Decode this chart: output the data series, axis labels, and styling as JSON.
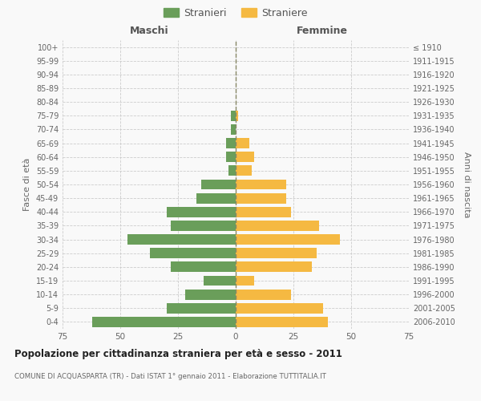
{
  "age_groups": [
    "0-4",
    "5-9",
    "10-14",
    "15-19",
    "20-24",
    "25-29",
    "30-34",
    "35-39",
    "40-44",
    "45-49",
    "50-54",
    "55-59",
    "60-64",
    "65-69",
    "70-74",
    "75-79",
    "80-84",
    "85-89",
    "90-94",
    "95-99",
    "100+"
  ],
  "birth_years": [
    "2006-2010",
    "2001-2005",
    "1996-2000",
    "1991-1995",
    "1986-1990",
    "1981-1985",
    "1976-1980",
    "1971-1975",
    "1966-1970",
    "1961-1965",
    "1956-1960",
    "1951-1955",
    "1946-1950",
    "1941-1945",
    "1936-1940",
    "1931-1935",
    "1926-1930",
    "1921-1925",
    "1916-1920",
    "1911-1915",
    "≤ 1910"
  ],
  "maschi": [
    62,
    30,
    22,
    14,
    28,
    37,
    47,
    28,
    30,
    17,
    15,
    3,
    4,
    4,
    2,
    2,
    0,
    0,
    0,
    0,
    0
  ],
  "femmine": [
    40,
    38,
    24,
    8,
    33,
    35,
    45,
    36,
    24,
    22,
    22,
    7,
    8,
    6,
    0,
    1,
    0,
    0,
    0,
    0,
    0
  ],
  "male_color": "#6a9e5a",
  "female_color": "#f5b942",
  "dashed_line_color": "#888866",
  "background_color": "#f9f9f9",
  "grid_color": "#cccccc",
  "title": "Popolazione per cittadinanza straniera per età e sesso - 2011",
  "subtitle": "COMUNE DI ACQUASPARTA (TR) - Dati ISTAT 1° gennaio 2011 - Elaborazione TUTTITALIA.IT",
  "xlabel_left": "Maschi",
  "xlabel_right": "Femmine",
  "ylabel_left": "Fasce di età",
  "ylabel_right": "Anni di nascita",
  "legend_male": "Stranieri",
  "legend_female": "Straniere",
  "xlim": 75,
  "bar_height": 0.75
}
